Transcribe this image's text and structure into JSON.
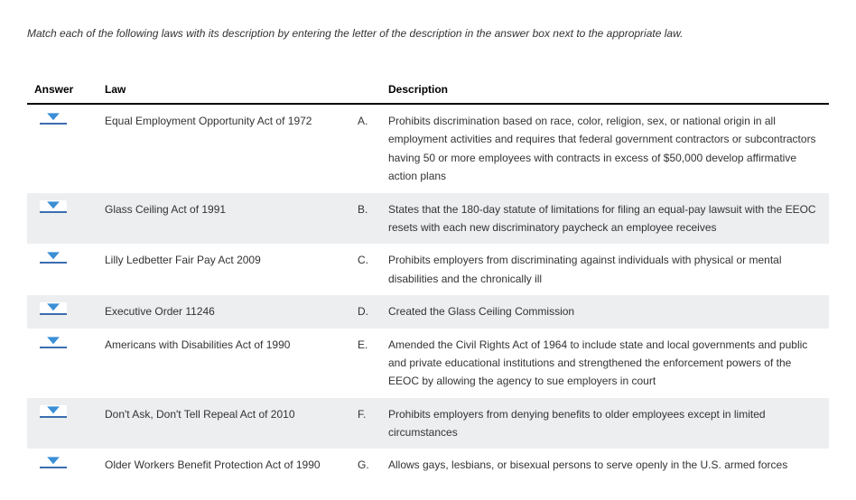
{
  "instructions": "Match each of the following laws with its description by entering the letter of the description in the answer box next to the appropriate law.",
  "headers": {
    "answer": "Answer",
    "law": "Law",
    "description": "Description"
  },
  "rows": [
    {
      "law": "Equal Employment Opportunity Act of 1972",
      "letter": "A.",
      "description": "Prohibits discrimination based on race, color, religion, sex, or national origin in all employment activities and requires that federal government contractors or subcontractors having 50 or more employees with contracts in excess of $50,000 develop affirmative action plans",
      "alt": false
    },
    {
      "law": "Glass Ceiling Act of 1991",
      "letter": "B.",
      "description": "States that the 180-day statute of limitations for filing an equal-pay lawsuit with the EEOC resets with each new discriminatory paycheck an employee receives",
      "alt": true
    },
    {
      "law": "Lilly Ledbetter Fair Pay Act 2009",
      "letter": "C.",
      "description": "Prohibits employers from discriminating against individuals with physical or mental disabilities and the chronically ill",
      "alt": false
    },
    {
      "law": "Executive Order 11246",
      "letter": "D.",
      "description": "Created the Glass Ceiling Commission",
      "alt": true
    },
    {
      "law": "Americans with Disabilities Act of 1990",
      "letter": "E.",
      "description": "Amended the Civil Rights Act of 1964 to include state and local governments and public and private educational institutions and strengthened the enforcement powers of the EEOC by allowing the agency to sue employers in court",
      "alt": false
    },
    {
      "law": "Don't Ask, Don't Tell Repeal Act of 2010",
      "letter": "F.",
      "description": "Prohibits employers from denying benefits to older employees except in limited circumstances",
      "alt": true
    },
    {
      "law": "Older Workers Benefit Protection Act of 1990",
      "letter": "G.",
      "description": "Allows gays, lesbians, or bisexual persons to serve openly in the U.S. armed forces",
      "alt": false
    }
  ],
  "colors": {
    "dropdown_arrow": "#3b8fd6",
    "dropdown_underline": "#3b6db0",
    "header_border": "#000000",
    "alt_row_bg": "#eceeef"
  }
}
